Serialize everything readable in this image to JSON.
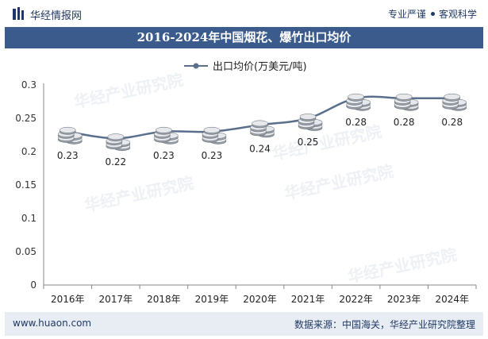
{
  "header": {
    "brand": "华经情报网",
    "slogan_left": "专业严谨",
    "slogan_right": "客观科学"
  },
  "title": "2016-2024年中国烟花、爆竹出口均价",
  "footer": {
    "url": "www.huaon.com",
    "source": "数据来源：中国海关，华经产业研究院整理"
  },
  "watermark": "华经产业研究院",
  "colors": {
    "title_bg": "#3b5b8c",
    "line": "#5a6f8c",
    "footer_bg": "#e8edf4",
    "text": "#1f3864"
  },
  "chart_data": {
    "type": "line",
    "categories": [
      "2016年",
      "2017年",
      "2018年",
      "2019年",
      "2020年",
      "2021年",
      "2022年",
      "2023年",
      "2024年"
    ],
    "series": [
      {
        "name": "出口均价(万美元/吨)",
        "values": [
          0.23,
          0.22,
          0.23,
          0.23,
          0.24,
          0.25,
          0.28,
          0.28,
          0.28
        ],
        "labels": [
          "0.23",
          "0.22",
          "0.23",
          "0.23",
          "0.24",
          "0.25",
          "0.28",
          "0.28",
          "0.28"
        ]
      }
    ],
    "yticks": [
      "0",
      "0.05",
      "0.1",
      "0.15",
      "0.2",
      "0.25",
      "0.3"
    ],
    "ylim": [
      0,
      0.3
    ],
    "grid": false,
    "legend": "top-center",
    "markers": "coin-stack"
  }
}
